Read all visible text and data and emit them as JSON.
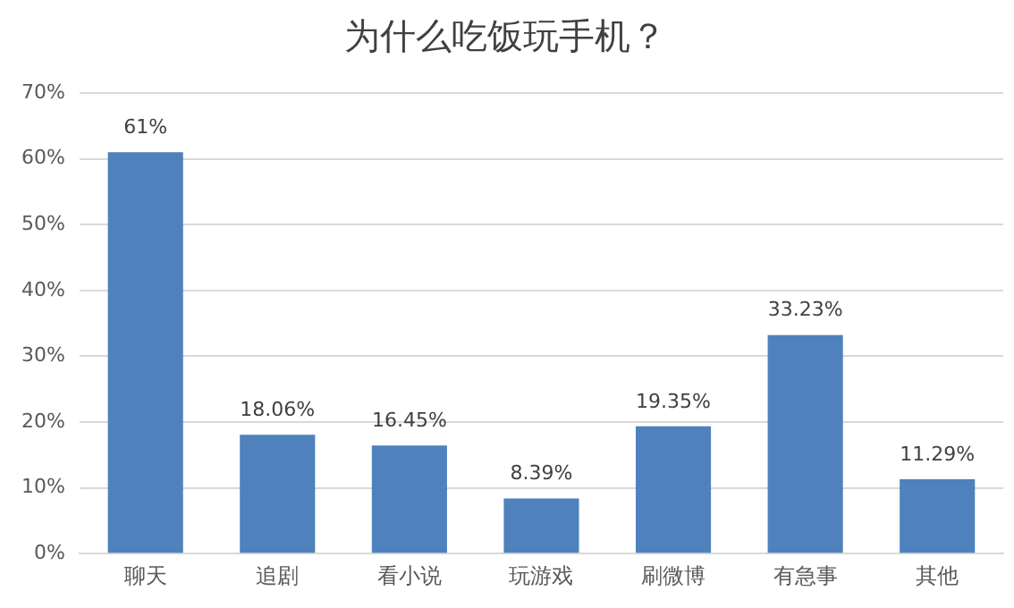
{
  "chart_data": {
    "type": "bar",
    "title": "为什么吃饭玩手机？",
    "categories": [
      "聊天",
      "追剧",
      "看小说",
      "玩游戏",
      "刷微博",
      "有急事",
      "其他"
    ],
    "values": [
      61,
      18.06,
      16.45,
      8.39,
      19.35,
      33.23,
      11.29
    ],
    "value_labels": [
      "61%",
      "18.06%",
      "16.45%",
      "8.39%",
      "19.35%",
      "33.23%",
      "11.29%"
    ],
    "color": "#4f81bd",
    "ylim": [
      0,
      70
    ],
    "yticks": [
      {
        "value": 0,
        "label": "0%"
      },
      {
        "value": 10,
        "label": "10%"
      },
      {
        "value": 20,
        "label": "20%"
      },
      {
        "value": 30,
        "label": "30%"
      },
      {
        "value": 40,
        "label": "40%"
      },
      {
        "value": 50,
        "label": "50%"
      },
      {
        "value": 60,
        "label": "60%"
      },
      {
        "value": 70,
        "label": "70%"
      }
    ],
    "grid": "y"
  }
}
